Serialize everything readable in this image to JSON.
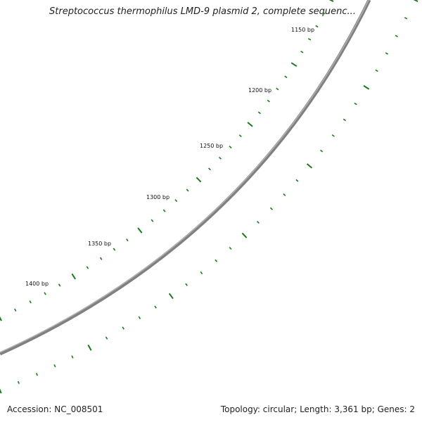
{
  "title": "Streptococcus thermophilus LMD-9 plasmid 2, complete sequenc...",
  "footer": {
    "accession": "Accession: NC_008501",
    "summary": "Topology: circular; Length: 3,361 bp; Genes: 2"
  },
  "map": {
    "backbone_color": "#808080",
    "tick_color": "#1a7a1a",
    "ticks": [
      {
        "bp": 1150,
        "label": "1150 bp"
      },
      {
        "bp": 1200,
        "label": "1200 bp"
      },
      {
        "bp": 1250,
        "label": "1250 bp"
      },
      {
        "bp": 1300,
        "label": "1300 bp"
      },
      {
        "bp": 1350,
        "label": "1350 bp"
      },
      {
        "bp": 1400,
        "label": "1400 bp"
      }
    ]
  }
}
